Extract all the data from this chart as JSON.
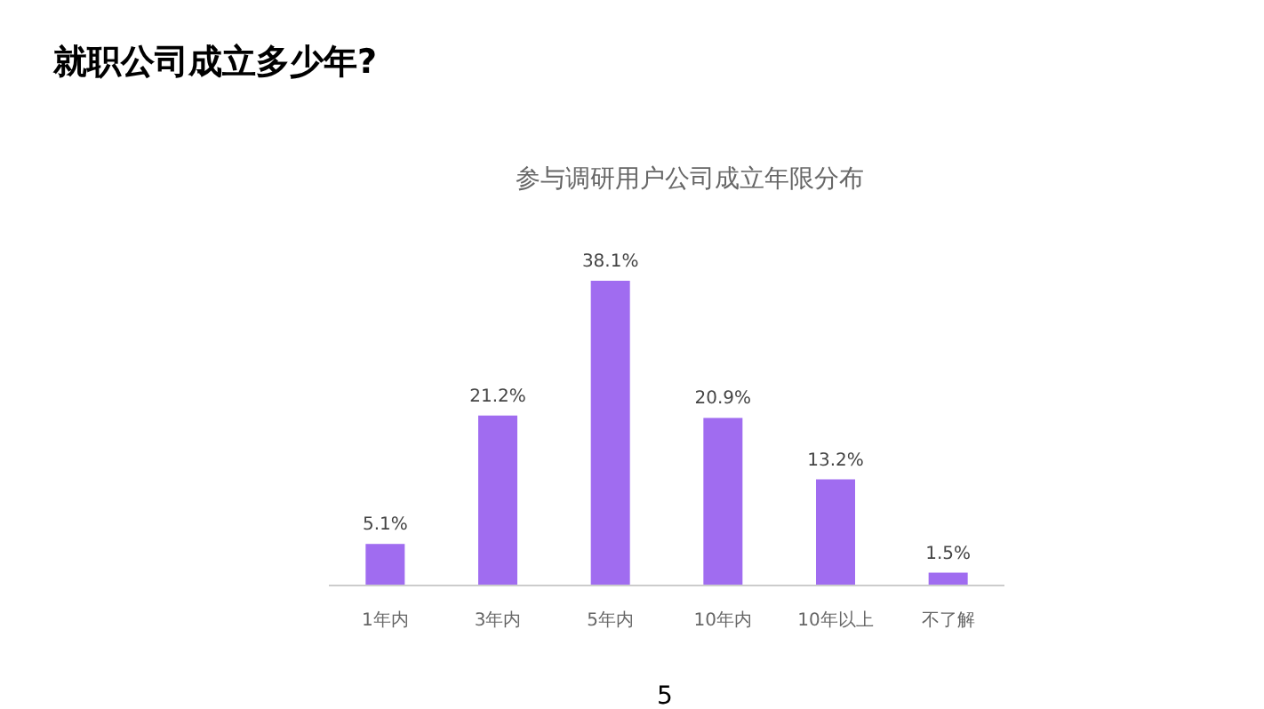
{
  "chart_data": {
    "type": "bar",
    "title": "就职公司成立多少年?",
    "subtitle": "参与调研用户公司成立年限分布",
    "categories": [
      "1年内",
      "3年内",
      "5年内",
      "10年内",
      "10年以上",
      "不了解"
    ],
    "values": [
      5.1,
      21.2,
      38.1,
      20.9,
      13.2,
      1.5
    ],
    "value_labels": [
      "5.1%",
      "21.2%",
      "38.1%",
      "20.9%",
      "13.2%",
      "1.5%"
    ],
    "color": "#a06cf0",
    "annotations": [
      "5"
    ]
  }
}
